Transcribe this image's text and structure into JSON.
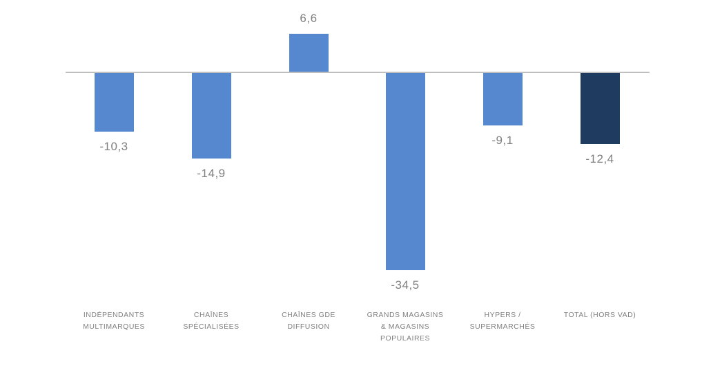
{
  "chart_data": {
    "type": "bar",
    "title": "",
    "xlabel": "",
    "ylabel": "",
    "ylim": [
      -40,
      10
    ],
    "grid": false,
    "legend": false,
    "baseline_color": "#BFBFBF",
    "value_label_color": "#808080",
    "category_label_color": "#7F7F7F",
    "default_bar_color": "#5588CE",
    "total_bar_color": "#1F3B60",
    "categories": [
      "INDÉPENDANTS MULTIMARQUES",
      "CHAÎNES SPÉCIALISÉES",
      "CHAÎNES GDE DIFFUSION",
      "GRANDS MAGASINS & MAGASINS POPULAIRES",
      "HYPERS / SUPERMARCHÉS",
      "TOTAL (Hors VAD)"
    ],
    "category_lines": [
      [
        "INDÉPENDANTS",
        "MULTIMARQUES"
      ],
      [
        "CHAÎNES",
        "SPÉCIALISÉES"
      ],
      [
        "CHAÎNES GDE",
        "DIFFUSION"
      ],
      [
        "GRANDS MAGASINS",
        "& MAGASINS",
        "POPULAIRES"
      ],
      [
        "HYPERS /",
        "SUPERMARCHÉS"
      ],
      [
        "TOTAL (Hors VAD)"
      ]
    ],
    "values": [
      -10.3,
      -14.9,
      6.6,
      -34.5,
      -9.1,
      -12.4
    ],
    "value_labels": [
      "-10,3",
      "-14,9",
      "6,6",
      "-34,5",
      "-9,1",
      "-12,4"
    ],
    "bar_colors": [
      "#5588CE",
      "#5588CE",
      "#5588CE",
      "#5588CE",
      "#5588CE",
      "#1F3B60"
    ]
  }
}
